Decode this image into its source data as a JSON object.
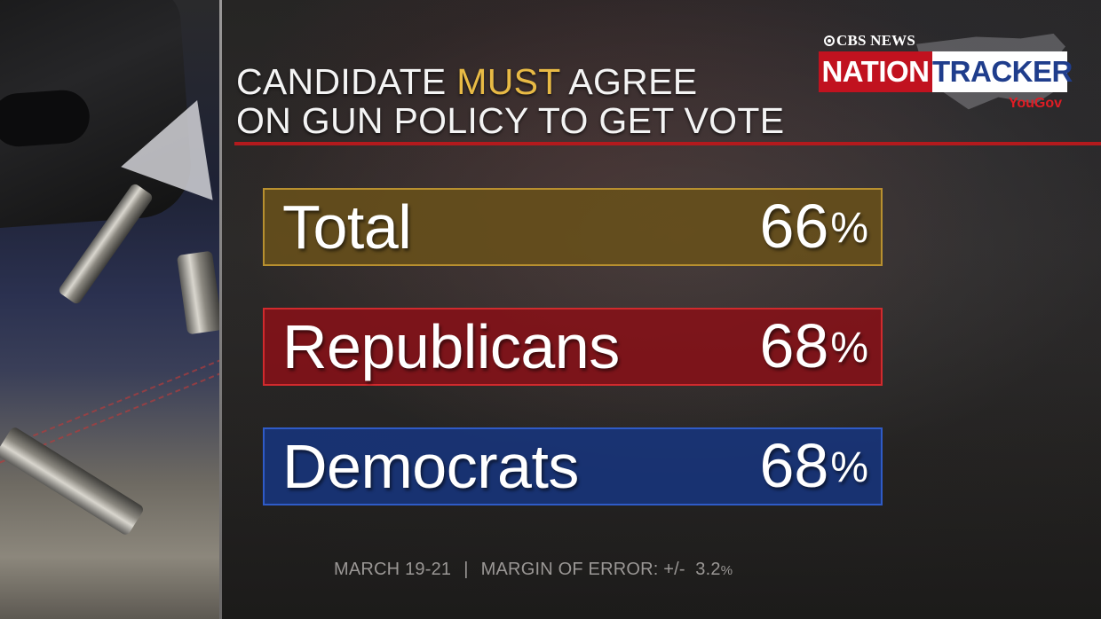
{
  "title": {
    "line1_before": "CANDIDATE",
    "line1_highlight": "MUST",
    "line1_after": "AGREE",
    "line2": "ON GUN POLICY TO GET VOTE",
    "highlight_color": "#e8ba45"
  },
  "logo": {
    "network": "CBS NEWS",
    "word1": "NATION",
    "word2": "TRACKER",
    "partner": "YouGov"
  },
  "bars": [
    {
      "label": "Total",
      "value": "66",
      "unit": "%",
      "color": "#68501a"
    },
    {
      "label": "Republicans",
      "value": "68",
      "unit": "%",
      "color": "#841218"
    },
    {
      "label": "Democrats",
      "value": "68",
      "unit": "%",
      "color": "#183478"
    }
  ],
  "footer": {
    "dates": "MARCH 19-21",
    "separator": "|",
    "moe_label": "MARGIN OF ERROR: +/-",
    "moe_value": "3.2",
    "moe_unit": "%"
  }
}
